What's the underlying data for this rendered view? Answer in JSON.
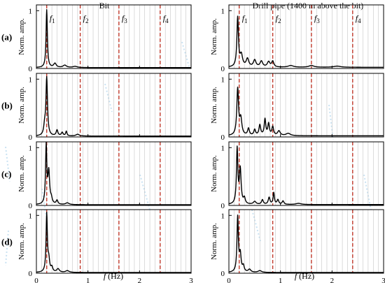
{
  "figure": {
    "column_titles": [
      "Bit",
      "Drill pipe (1400 m above the bit)"
    ],
    "row_labels": [
      "(a)",
      "(b)",
      "(c)",
      "(d)"
    ],
    "ylabel": "Norm. amp.",
    "xlabel_italic": "f",
    "xlabel_rest": " (Hz)",
    "colors": {
      "spectrum": "#000000",
      "marker": "#c0392b",
      "grid": "#b8b8b8",
      "smear": "#9ecbe8"
    }
  },
  "chart_data": {
    "type": "line",
    "xlim": [
      0,
      3
    ],
    "ylim": [
      0,
      1.1
    ],
    "x_ticks": [
      0,
      1,
      2,
      3
    ],
    "y_ticks": [
      0,
      1
    ],
    "grid": "vertical",
    "frequency_markers": [
      {
        "label": "f",
        "sub": "1",
        "x": 0.2
      },
      {
        "label": "f",
        "sub": "2",
        "x": 0.85
      },
      {
        "label": "f",
        "sub": "3",
        "x": 1.6
      },
      {
        "label": "f",
        "sub": "4",
        "x": 2.4
      }
    ],
    "panels": [
      {
        "row": "(a)",
        "column": "Bit",
        "peaks": [
          {
            "x": 0.2,
            "y": 1.0,
            "w": 0.015
          },
          {
            "x": 0.36,
            "y": 0.07,
            "w": 0.03
          },
          {
            "x": 0.55,
            "y": 0.04,
            "w": 0.04
          },
          {
            "x": 0.75,
            "y": 0.02,
            "w": 0.05
          }
        ],
        "floor": 0.015
      },
      {
        "row": "(a)",
        "column": "Drill pipe (1400 m above the bit)",
        "peaks": [
          {
            "x": 0.17,
            "y": 0.85,
            "w": 0.018
          },
          {
            "x": 0.24,
            "y": 0.2,
            "w": 0.03
          },
          {
            "x": 0.36,
            "y": 0.14,
            "w": 0.03
          },
          {
            "x": 0.5,
            "y": 0.12,
            "w": 0.03
          },
          {
            "x": 0.63,
            "y": 0.1,
            "w": 0.03
          },
          {
            "x": 0.77,
            "y": 0.09,
            "w": 0.03
          },
          {
            "x": 0.85,
            "y": 0.1,
            "w": 0.025
          },
          {
            "x": 1.2,
            "y": 0.03,
            "w": 0.06
          },
          {
            "x": 1.6,
            "y": 0.03,
            "w": 0.06
          },
          {
            "x": 2.1,
            "y": 0.02,
            "w": 0.08
          }
        ],
        "floor": 0.02
      },
      {
        "row": "(b)",
        "column": "Bit",
        "peaks": [
          {
            "x": 0.2,
            "y": 1.0,
            "w": 0.018
          },
          {
            "x": 0.16,
            "y": 0.15,
            "w": 0.02
          },
          {
            "x": 0.4,
            "y": 0.1,
            "w": 0.02
          },
          {
            "x": 0.5,
            "y": 0.06,
            "w": 0.02
          },
          {
            "x": 0.58,
            "y": 0.08,
            "w": 0.015
          },
          {
            "x": 0.8,
            "y": 0.03,
            "w": 0.04
          }
        ],
        "floor": 0.015
      },
      {
        "row": "(b)",
        "column": "Drill pipe (1400 m above the bit)",
        "peaks": [
          {
            "x": 0.17,
            "y": 0.8,
            "w": 0.02
          },
          {
            "x": 0.23,
            "y": 0.28,
            "w": 0.025
          },
          {
            "x": 0.38,
            "y": 0.12,
            "w": 0.02
          },
          {
            "x": 0.5,
            "y": 0.1,
            "w": 0.02
          },
          {
            "x": 0.6,
            "y": 0.18,
            "w": 0.02
          },
          {
            "x": 0.7,
            "y": 0.28,
            "w": 0.018
          },
          {
            "x": 0.77,
            "y": 0.2,
            "w": 0.018
          },
          {
            "x": 0.85,
            "y": 0.15,
            "w": 0.02
          },
          {
            "x": 0.97,
            "y": 0.08,
            "w": 0.03
          },
          {
            "x": 1.15,
            "y": 0.04,
            "w": 0.05
          }
        ],
        "floor": 0.02
      },
      {
        "row": "(c)",
        "column": "Bit",
        "peaks": [
          {
            "x": 0.19,
            "y": 1.0,
            "w": 0.015
          },
          {
            "x": 0.24,
            "y": 0.55,
            "w": 0.02
          },
          {
            "x": 0.29,
            "y": 0.08,
            "w": 0.02
          },
          {
            "x": 0.4,
            "y": 0.07,
            "w": 0.02
          },
          {
            "x": 0.6,
            "y": 0.03,
            "w": 0.04
          }
        ],
        "floor": 0.012
      },
      {
        "row": "(c)",
        "column": "Drill pipe (1400 m above the bit)",
        "peaks": [
          {
            "x": 0.16,
            "y": 0.95,
            "w": 0.016
          },
          {
            "x": 0.22,
            "y": 0.6,
            "w": 0.02
          },
          {
            "x": 0.3,
            "y": 0.1,
            "w": 0.02
          },
          {
            "x": 0.5,
            "y": 0.05,
            "w": 0.03
          },
          {
            "x": 0.65,
            "y": 0.08,
            "w": 0.02
          },
          {
            "x": 0.78,
            "y": 0.12,
            "w": 0.02
          },
          {
            "x": 0.87,
            "y": 0.2,
            "w": 0.015
          },
          {
            "x": 0.95,
            "y": 0.08,
            "w": 0.02
          },
          {
            "x": 1.05,
            "y": 0.06,
            "w": 0.02
          },
          {
            "x": 1.35,
            "y": 0.02,
            "w": 0.06
          }
        ],
        "floor": 0.015
      },
      {
        "row": "(d)",
        "column": "Bit",
        "peaks": [
          {
            "x": 0.2,
            "y": 1.0,
            "w": 0.015
          },
          {
            "x": 0.24,
            "y": 0.2,
            "w": 0.02
          },
          {
            "x": 0.3,
            "y": 0.08,
            "w": 0.02
          },
          {
            "x": 0.42,
            "y": 0.06,
            "w": 0.03
          },
          {
            "x": 0.6,
            "y": 0.03,
            "w": 0.04
          }
        ],
        "floor": 0.012
      },
      {
        "row": "(d)",
        "column": "Drill pipe (1400 m above the bit)",
        "peaks": [
          {
            "x": 0.17,
            "y": 0.95,
            "w": 0.016
          },
          {
            "x": 0.22,
            "y": 0.3,
            "w": 0.02
          },
          {
            "x": 0.28,
            "y": 0.1,
            "w": 0.02
          },
          {
            "x": 0.4,
            "y": 0.05,
            "w": 0.03
          },
          {
            "x": 0.6,
            "y": 0.03,
            "w": 0.04
          }
        ],
        "floor": 0.012
      }
    ]
  }
}
